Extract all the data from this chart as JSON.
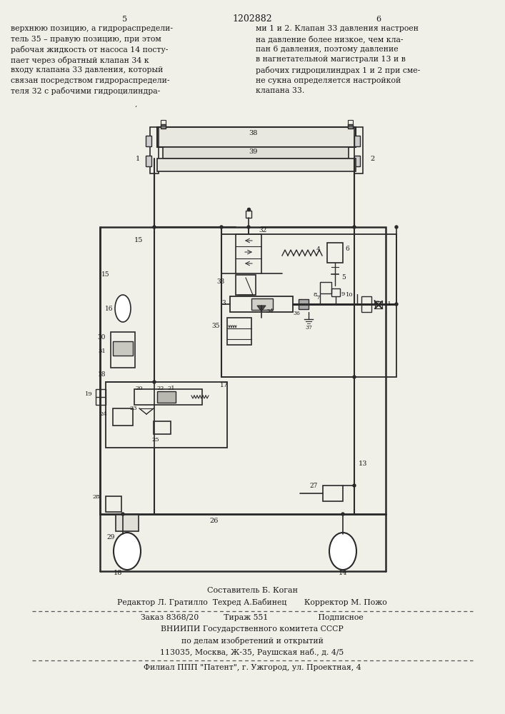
{
  "page_width": 7.07,
  "page_height": 10.0,
  "bg_color": "#f0efe8",
  "text_color": "#1a1a1a",
  "line_color": "#2a2a2a",
  "top_text_left": "верхнюю позицию, а гидрораспредели-\nтель 35 – правую позицию, при этом\nрабочая жидкость от насоса 14 посту-\nпает через обратный клапан 34 к\nвходу клапана 33 давления, который\nсвязан посредством гидрораспредели-\nтеля 32 с рабочими гидроцилиндра-",
  "top_text_right": "ми 1 и 2. Клапан 33 давления настроен\nна давление более низкое, чем кла-\nпан 6 давления, поэтому давление\nв нагнетательной магистрали 13 и в\nрабочих гидроцилиндрах 1 и 2 при сме-\nне сукна определяется настройкой\nклапана 33.",
  "page_num_left": "5",
  "page_num_center": "1202882",
  "page_num_right": "6",
  "bottom_line1": "Составитель Б. Коган",
  "bottom_line2": "Редактор Л. Гратилло  Техред А.Бабинец       Корректор М. Пожо",
  "bottom_line3": "Заказ 8368/20          Тираж 551                    Подписное",
  "bottom_line4": "ВНИИПИ Государственного комитета СССР",
  "bottom_line5": "по делам изобретений и открытий",
  "bottom_line6": "113035, Москва, Ж-35, Раушская наб., д. 4/5",
  "bottom_line7": "Филиал ППП \"Патент\", г. Ужгород, ул. Проектная, 4"
}
